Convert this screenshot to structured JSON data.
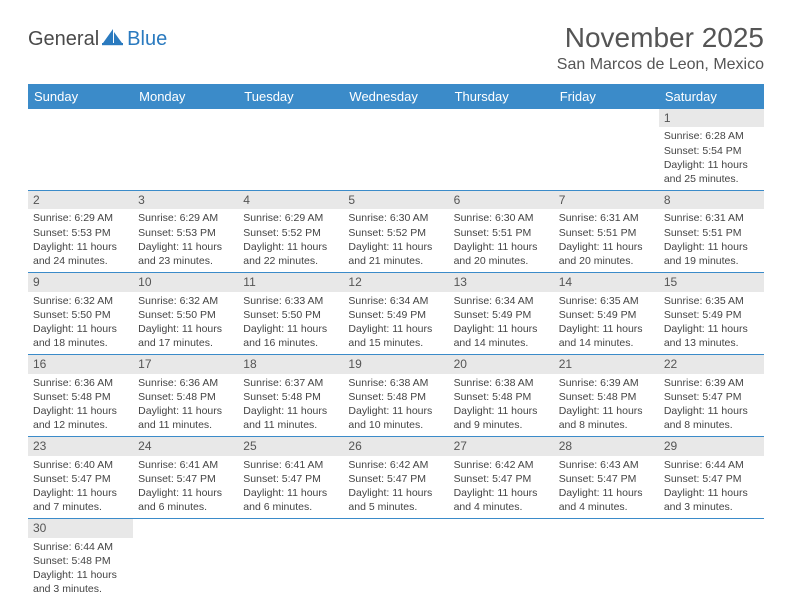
{
  "brand": {
    "part1": "General",
    "part2": "Blue"
  },
  "title": "November 2025",
  "location": "San Marcos de Leon, Mexico",
  "colors": {
    "header_bg": "#3b8bc9",
    "daynum_bg": "#e8e8e8",
    "rule": "#3b8bc9",
    "brand_blue": "#2a7abf"
  },
  "weekdays": [
    "Sunday",
    "Monday",
    "Tuesday",
    "Wednesday",
    "Thursday",
    "Friday",
    "Saturday"
  ],
  "days": [
    {
      "n": "",
      "sunrise": "",
      "sunset": "",
      "daylight": ""
    },
    {
      "n": "",
      "sunrise": "",
      "sunset": "",
      "daylight": ""
    },
    {
      "n": "",
      "sunrise": "",
      "sunset": "",
      "daylight": ""
    },
    {
      "n": "",
      "sunrise": "",
      "sunset": "",
      "daylight": ""
    },
    {
      "n": "",
      "sunrise": "",
      "sunset": "",
      "daylight": ""
    },
    {
      "n": "",
      "sunrise": "",
      "sunset": "",
      "daylight": ""
    },
    {
      "n": "1",
      "sunrise": "Sunrise: 6:28 AM",
      "sunset": "Sunset: 5:54 PM",
      "daylight": "Daylight: 11 hours and 25 minutes."
    },
    {
      "n": "2",
      "sunrise": "Sunrise: 6:29 AM",
      "sunset": "Sunset: 5:53 PM",
      "daylight": "Daylight: 11 hours and 24 minutes."
    },
    {
      "n": "3",
      "sunrise": "Sunrise: 6:29 AM",
      "sunset": "Sunset: 5:53 PM",
      "daylight": "Daylight: 11 hours and 23 minutes."
    },
    {
      "n": "4",
      "sunrise": "Sunrise: 6:29 AM",
      "sunset": "Sunset: 5:52 PM",
      "daylight": "Daylight: 11 hours and 22 minutes."
    },
    {
      "n": "5",
      "sunrise": "Sunrise: 6:30 AM",
      "sunset": "Sunset: 5:52 PM",
      "daylight": "Daylight: 11 hours and 21 minutes."
    },
    {
      "n": "6",
      "sunrise": "Sunrise: 6:30 AM",
      "sunset": "Sunset: 5:51 PM",
      "daylight": "Daylight: 11 hours and 20 minutes."
    },
    {
      "n": "7",
      "sunrise": "Sunrise: 6:31 AM",
      "sunset": "Sunset: 5:51 PM",
      "daylight": "Daylight: 11 hours and 20 minutes."
    },
    {
      "n": "8",
      "sunrise": "Sunrise: 6:31 AM",
      "sunset": "Sunset: 5:51 PM",
      "daylight": "Daylight: 11 hours and 19 minutes."
    },
    {
      "n": "9",
      "sunrise": "Sunrise: 6:32 AM",
      "sunset": "Sunset: 5:50 PM",
      "daylight": "Daylight: 11 hours and 18 minutes."
    },
    {
      "n": "10",
      "sunrise": "Sunrise: 6:32 AM",
      "sunset": "Sunset: 5:50 PM",
      "daylight": "Daylight: 11 hours and 17 minutes."
    },
    {
      "n": "11",
      "sunrise": "Sunrise: 6:33 AM",
      "sunset": "Sunset: 5:50 PM",
      "daylight": "Daylight: 11 hours and 16 minutes."
    },
    {
      "n": "12",
      "sunrise": "Sunrise: 6:34 AM",
      "sunset": "Sunset: 5:49 PM",
      "daylight": "Daylight: 11 hours and 15 minutes."
    },
    {
      "n": "13",
      "sunrise": "Sunrise: 6:34 AM",
      "sunset": "Sunset: 5:49 PM",
      "daylight": "Daylight: 11 hours and 14 minutes."
    },
    {
      "n": "14",
      "sunrise": "Sunrise: 6:35 AM",
      "sunset": "Sunset: 5:49 PM",
      "daylight": "Daylight: 11 hours and 14 minutes."
    },
    {
      "n": "15",
      "sunrise": "Sunrise: 6:35 AM",
      "sunset": "Sunset: 5:49 PM",
      "daylight": "Daylight: 11 hours and 13 minutes."
    },
    {
      "n": "16",
      "sunrise": "Sunrise: 6:36 AM",
      "sunset": "Sunset: 5:48 PM",
      "daylight": "Daylight: 11 hours and 12 minutes."
    },
    {
      "n": "17",
      "sunrise": "Sunrise: 6:36 AM",
      "sunset": "Sunset: 5:48 PM",
      "daylight": "Daylight: 11 hours and 11 minutes."
    },
    {
      "n": "18",
      "sunrise": "Sunrise: 6:37 AM",
      "sunset": "Sunset: 5:48 PM",
      "daylight": "Daylight: 11 hours and 11 minutes."
    },
    {
      "n": "19",
      "sunrise": "Sunrise: 6:38 AM",
      "sunset": "Sunset: 5:48 PM",
      "daylight": "Daylight: 11 hours and 10 minutes."
    },
    {
      "n": "20",
      "sunrise": "Sunrise: 6:38 AM",
      "sunset": "Sunset: 5:48 PM",
      "daylight": "Daylight: 11 hours and 9 minutes."
    },
    {
      "n": "21",
      "sunrise": "Sunrise: 6:39 AM",
      "sunset": "Sunset: 5:48 PM",
      "daylight": "Daylight: 11 hours and 8 minutes."
    },
    {
      "n": "22",
      "sunrise": "Sunrise: 6:39 AM",
      "sunset": "Sunset: 5:47 PM",
      "daylight": "Daylight: 11 hours and 8 minutes."
    },
    {
      "n": "23",
      "sunrise": "Sunrise: 6:40 AM",
      "sunset": "Sunset: 5:47 PM",
      "daylight": "Daylight: 11 hours and 7 minutes."
    },
    {
      "n": "24",
      "sunrise": "Sunrise: 6:41 AM",
      "sunset": "Sunset: 5:47 PM",
      "daylight": "Daylight: 11 hours and 6 minutes."
    },
    {
      "n": "25",
      "sunrise": "Sunrise: 6:41 AM",
      "sunset": "Sunset: 5:47 PM",
      "daylight": "Daylight: 11 hours and 6 minutes."
    },
    {
      "n": "26",
      "sunrise": "Sunrise: 6:42 AM",
      "sunset": "Sunset: 5:47 PM",
      "daylight": "Daylight: 11 hours and 5 minutes."
    },
    {
      "n": "27",
      "sunrise": "Sunrise: 6:42 AM",
      "sunset": "Sunset: 5:47 PM",
      "daylight": "Daylight: 11 hours and 4 minutes."
    },
    {
      "n": "28",
      "sunrise": "Sunrise: 6:43 AM",
      "sunset": "Sunset: 5:47 PM",
      "daylight": "Daylight: 11 hours and 4 minutes."
    },
    {
      "n": "29",
      "sunrise": "Sunrise: 6:44 AM",
      "sunset": "Sunset: 5:47 PM",
      "daylight": "Daylight: 11 hours and 3 minutes."
    },
    {
      "n": "30",
      "sunrise": "Sunrise: 6:44 AM",
      "sunset": "Sunset: 5:48 PM",
      "daylight": "Daylight: 11 hours and 3 minutes."
    },
    {
      "n": "",
      "sunrise": "",
      "sunset": "",
      "daylight": ""
    },
    {
      "n": "",
      "sunrise": "",
      "sunset": "",
      "daylight": ""
    },
    {
      "n": "",
      "sunrise": "",
      "sunset": "",
      "daylight": ""
    },
    {
      "n": "",
      "sunrise": "",
      "sunset": "",
      "daylight": ""
    },
    {
      "n": "",
      "sunrise": "",
      "sunset": "",
      "daylight": ""
    },
    {
      "n": "",
      "sunrise": "",
      "sunset": "",
      "daylight": ""
    }
  ]
}
